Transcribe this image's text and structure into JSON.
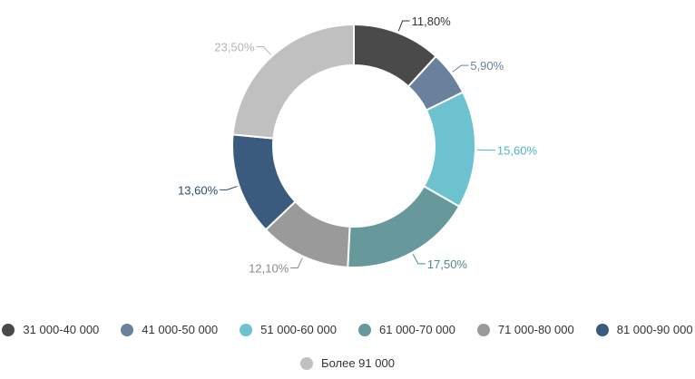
{
  "chart_data": {
    "type": "pie",
    "style": "donut",
    "title": "",
    "slices": [
      {
        "name": "31 000-40 000",
        "value": 11.8,
        "label": "11,80%",
        "color": "#4a4a4a",
        "label_color": "#333333"
      },
      {
        "name": "41 000-50 000",
        "value": 5.9,
        "label": "5,90%",
        "color": "#6a819e",
        "label_color": "#6a819e"
      },
      {
        "name": "51 000-60 000",
        "value": 15.6,
        "label": "15,60%",
        "color": "#6cc3cf",
        "label_color": "#4fb6c4"
      },
      {
        "name": "61 000-70 000",
        "value": 17.5,
        "label": "17,50%",
        "color": "#66989c",
        "label_color": "#4e8a8f"
      },
      {
        "name": "71 000-80 000",
        "value": 12.1,
        "label": "12,10%",
        "color": "#9a9a9a",
        "label_color": "#8a8a8a"
      },
      {
        "name": "81 000-90 000",
        "value": 13.6,
        "label": "13,60%",
        "color": "#3a5a7e",
        "label_color": "#2f4d70"
      },
      {
        "name": "Более 91 000",
        "value": 23.5,
        "label": "23,50%",
        "color": "#c0c0c0",
        "label_color": "#b5b5b5"
      }
    ],
    "legend_position": "bottom"
  }
}
